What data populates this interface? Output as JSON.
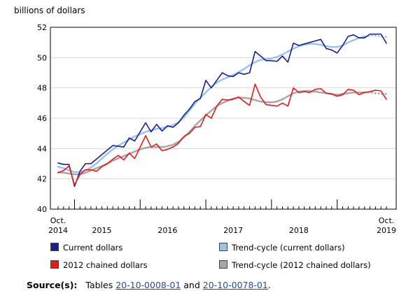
{
  "chart_data": {
    "type": "line",
    "ylabel": "billions of dollars",
    "ylim": [
      40,
      52
    ],
    "yticks": [
      40,
      42,
      44,
      46,
      48,
      50,
      52
    ],
    "x_start": "2014-10",
    "x_end": "2019-10",
    "x_tick_labels": [
      {
        "month": "2014-10",
        "lines": [
          "Oct.",
          "2014"
        ]
      },
      {
        "month": "2015-06",
        "lines": [
          "2015"
        ]
      },
      {
        "month": "2016-06",
        "lines": [
          "2016"
        ]
      },
      {
        "month": "2017-06",
        "lines": [
          "2017"
        ]
      },
      {
        "month": "2018-06",
        "lines": [
          "2018"
        ]
      },
      {
        "month": "2019-10",
        "lines": [
          "Oct.",
          "2019"
        ]
      }
    ],
    "grid": true,
    "legend_position": "bottom",
    "series": [
      {
        "name": "Current dollars",
        "color": "#1a1f8c",
        "style": "solid",
        "values": [
          43.05,
          42.95,
          42.95,
          41.5,
          42.5,
          43.0,
          43.0,
          43.3,
          43.6,
          43.9,
          44.2,
          44.15,
          44.1,
          44.7,
          44.5,
          45.1,
          45.7,
          45.1,
          45.6,
          45.15,
          45.5,
          45.4,
          45.7,
          46.2,
          46.6,
          47.1,
          47.3,
          48.5,
          48.0,
          48.5,
          49.0,
          48.8,
          48.75,
          49.0,
          48.9,
          49.0,
          50.4,
          50.1,
          49.8,
          49.8,
          49.75,
          50.1,
          49.7,
          50.95,
          50.8,
          50.9,
          51.0,
          51.1,
          51.2,
          50.6,
          50.5,
          50.3,
          50.8,
          51.4,
          51.5,
          51.3,
          51.3,
          51.55,
          51.55,
          51.55,
          50.95
        ]
      },
      {
        "name": "Trend-cycle (current dollars)",
        "color": "#99c2ec",
        "style": "solid-then-dotted",
        "values": [
          42.8,
          42.7,
          42.55,
          42.45,
          42.45,
          42.55,
          42.75,
          43.0,
          43.35,
          43.65,
          43.95,
          44.2,
          44.4,
          44.6,
          44.8,
          44.95,
          45.1,
          45.2,
          45.3,
          45.35,
          45.45,
          45.55,
          45.75,
          46.05,
          46.5,
          46.95,
          47.35,
          47.7,
          48.05,
          48.35,
          48.55,
          48.7,
          48.85,
          49.05,
          49.25,
          49.5,
          49.7,
          49.85,
          49.9,
          49.95,
          50.05,
          50.2,
          50.4,
          50.6,
          50.75,
          50.85,
          50.9,
          50.9,
          50.85,
          50.75,
          50.7,
          50.7,
          50.8,
          51.0,
          51.15,
          51.3,
          51.4,
          51.45,
          51.45,
          51.4,
          51.35
        ],
        "dotted_from_index": 56
      },
      {
        "name": "2012 chained dollars",
        "color": "#e8191b",
        "style": "solid",
        "values": [
          42.4,
          42.55,
          42.85,
          41.6,
          42.3,
          42.6,
          42.6,
          42.5,
          42.8,
          43.0,
          43.3,
          43.55,
          43.25,
          43.7,
          43.35,
          44.1,
          44.85,
          44.1,
          44.3,
          43.85,
          43.95,
          44.1,
          44.35,
          44.8,
          45.0,
          45.4,
          45.45,
          46.25,
          46.0,
          46.8,
          47.25,
          47.2,
          47.25,
          47.4,
          47.1,
          46.85,
          48.25,
          47.4,
          46.9,
          46.85,
          46.8,
          47.0,
          46.8,
          48.0,
          47.7,
          47.75,
          47.7,
          47.9,
          47.95,
          47.65,
          47.6,
          47.45,
          47.55,
          47.9,
          47.85,
          47.55,
          47.7,
          47.75,
          47.85,
          47.8,
          47.25
        ],
        "dotted_from_index": null
      },
      {
        "name": "Trend-cycle (2012 chained dollars)",
        "color": "#a6a6a6",
        "style": "solid-then-dotted",
        "values": [
          42.45,
          42.4,
          42.35,
          42.3,
          42.3,
          42.4,
          42.55,
          42.7,
          42.85,
          43.0,
          43.2,
          43.35,
          43.5,
          43.65,
          43.8,
          43.95,
          44.05,
          44.1,
          44.1,
          44.1,
          44.15,
          44.25,
          44.45,
          44.75,
          45.1,
          45.5,
          45.85,
          46.2,
          46.5,
          46.8,
          47.0,
          47.15,
          47.3,
          47.35,
          47.35,
          47.3,
          47.2,
          47.1,
          47.05,
          47.05,
          47.1,
          47.25,
          47.45,
          47.65,
          47.75,
          47.8,
          47.8,
          47.75,
          47.7,
          47.65,
          47.6,
          47.55,
          47.6,
          47.65,
          47.7,
          47.7,
          47.7,
          47.7,
          47.65,
          47.6,
          47.6
        ],
        "dotted_from_index": 56
      }
    ]
  },
  "legend": {
    "items": [
      {
        "label": "Current dollars",
        "color": "#1a1f8c"
      },
      {
        "label": "Trend-cycle (current dollars)",
        "color": "#99c2ec"
      },
      {
        "label": "2012 chained dollars",
        "color": "#e8191b"
      },
      {
        "label": "Trend-cycle (2012 chained dollars)",
        "color": "#a6a6a6"
      }
    ]
  },
  "source": {
    "label": "Source(s):",
    "prefix": "Tables",
    "link1": "20-10-0008-01",
    "middle": "and",
    "link2": "20-10-0078-01",
    "suffix": "."
  }
}
